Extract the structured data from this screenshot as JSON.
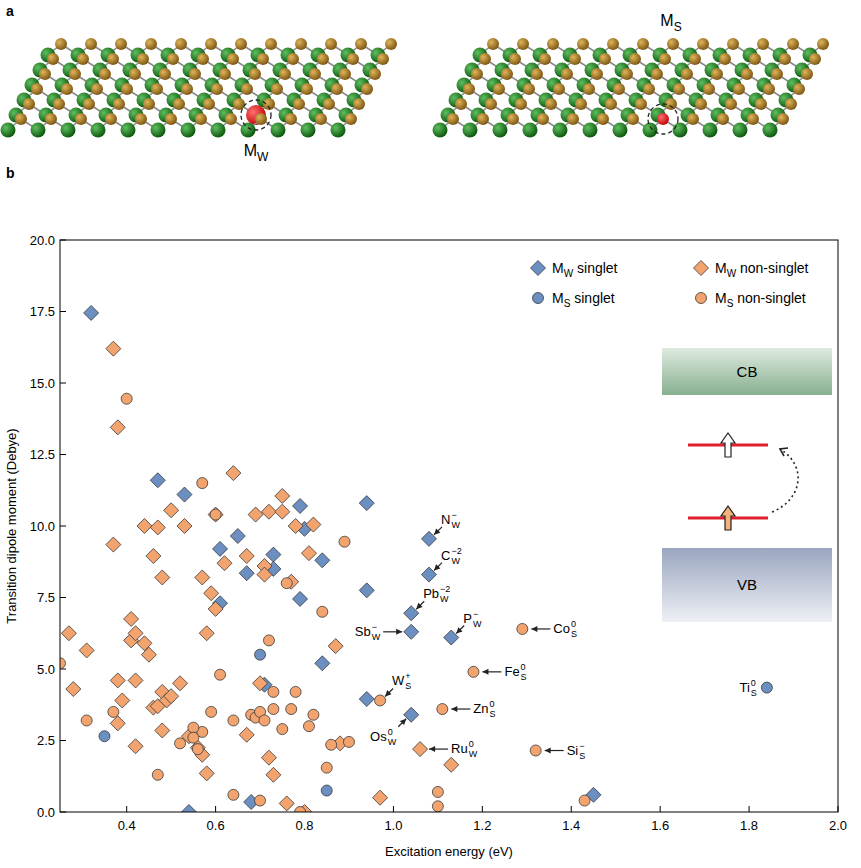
{
  "panel_a": {
    "label": "a",
    "structures": [
      {
        "label": "MW"
      },
      {
        "label": "MS"
      }
    ]
  },
  "chart_data": {
    "type": "scatter",
    "panel_label": "b",
    "x_label": "Excitation energy (eV)",
    "y_label": "Transition dipole moment (Debye)",
    "xlim": [
      0.25,
      2.0
    ],
    "ylim": [
      0,
      20
    ],
    "xticks": [
      0.4,
      0.6,
      0.8,
      {
        "value": 1,
        "label": "1.0"
      },
      1.2,
      1.4,
      1.6,
      1.8,
      {
        "value": 2,
        "label": "2.0"
      }
    ],
    "yticks": [
      {
        "value": 0,
        "label": "0.0"
      },
      2.5,
      {
        "value": 5,
        "label": "5.0"
      },
      7.5,
      {
        "value": 10,
        "label": "10.0"
      },
      12.5,
      {
        "value": 15,
        "label": "15.0"
      },
      17.5,
      {
        "value": 20,
        "label": "20.0"
      }
    ],
    "grid": false,
    "legend": "upper right",
    "series": [
      {
        "name": "MW singlet",
        "color": "#6a8fc0",
        "marker": "diamond",
        "x": [
          0.32,
          0.47,
          0.53,
          0.61,
          0.61,
          0.65,
          0.67,
          0.73,
          0.73,
          0.71,
          0.79,
          0.79,
          0.8,
          0.84,
          0.84,
          0.94,
          0.94,
          0.94,
          1.08,
          1.08,
          1.04,
          1.04,
          1.13,
          1.04,
          0.54,
          0.68,
          1.45
        ],
        "values": [
          17.45,
          11.6,
          11.1,
          9.2,
          7.3,
          9.65,
          8.35,
          9.0,
          8.5,
          4.45,
          10.7,
          7.45,
          9.9,
          8.8,
          5.2,
          10.8,
          7.75,
          3.95,
          9.55,
          8.3,
          6.95,
          6.3,
          6.1,
          3.4,
          0.0,
          0.35,
          0.6
        ]
      },
      {
        "name": "MW non-singlet",
        "color": "#f2a36e",
        "marker": "diamond",
        "x": [
          0.37,
          0.38,
          0.37,
          0.27,
          0.28,
          0.31,
          0.38,
          0.38,
          0.39,
          0.41,
          0.41,
          0.42,
          0.42,
          0.42,
          0.44,
          0.44,
          0.45,
          0.46,
          0.46,
          0.47,
          0.47,
          0.48,
          0.48,
          0.48,
          0.49,
          0.5,
          0.5,
          0.52,
          0.53,
          0.54,
          0.56,
          0.57,
          0.57,
          0.58,
          0.58,
          0.59,
          0.6,
          0.6,
          0.62,
          0.64,
          0.67,
          0.67,
          0.69,
          0.7,
          0.71,
          0.71,
          0.72,
          0.72,
          0.73,
          0.75,
          0.75,
          0.76,
          0.77,
          0.78,
          0.8,
          0.81,
          0.82,
          0.87,
          0.88,
          0.97,
          1.13,
          1.06
        ],
        "values": [
          16.2,
          13.45,
          9.35,
          6.25,
          4.3,
          5.65,
          4.6,
          3.1,
          3.9,
          6.75,
          6.0,
          2.3,
          4.6,
          6.25,
          10.0,
          5.9,
          5.5,
          3.65,
          8.95,
          9.95,
          3.7,
          8.2,
          2.85,
          4.2,
          3.9,
          10.55,
          4.05,
          4.5,
          10.0,
          2.65,
          2.25,
          2.0,
          8.2,
          1.35,
          6.25,
          7.65,
          7.1,
          10.4,
          8.7,
          11.85,
          2.7,
          8.95,
          10.4,
          4.5,
          8.6,
          8.3,
          1.9,
          10.5,
          1.3,
          11.05,
          10.5,
          0.3,
          8.05,
          10.0,
          0.0,
          9.05,
          10.05,
          5.8,
          2.4,
          0.5,
          1.65,
          2.2
        ]
      },
      {
        "name": "MS singlet",
        "color": "#6a8fc0",
        "marker": "circle",
        "x": [
          0.35,
          0.7,
          0.85,
          1.84
        ],
        "values": [
          2.65,
          5.5,
          0.75,
          4.35
        ]
      },
      {
        "name": "MS non-singlet",
        "color": "#f2a36e",
        "marker": "circle",
        "x": [
          0.25,
          0.31,
          0.4,
          0.37,
          0.47,
          0.57,
          0.57,
          0.59,
          0.6,
          0.61,
          0.64,
          0.64,
          0.68,
          0.69,
          0.7,
          0.71,
          0.72,
          0.73,
          0.73,
          0.75,
          0.76,
          0.77,
          0.78,
          0.79,
          0.81,
          0.82,
          0.84,
          0.85,
          0.86,
          0.89,
          0.9,
          0.97,
          1.1,
          1.1,
          1.11,
          1.18,
          1.29,
          1.32,
          1.43,
          0.7,
          0.52,
          0.55,
          0.56,
          0.55
        ],
        "values": [
          5.2,
          3.2,
          14.45,
          3.5,
          1.3,
          11.5,
          2.8,
          3.5,
          10.4,
          4.8,
          0.6,
          3.2,
          3.4,
          3.3,
          3.5,
          3.2,
          6.0,
          3.6,
          4.2,
          2.9,
          8.0,
          3.6,
          4.2,
          0.0,
          3.0,
          3.4,
          7.0,
          1.55,
          2.35,
          9.45,
          2.45,
          3.9,
          0.2,
          0.7,
          3.6,
          4.9,
          6.4,
          2.15,
          0.4,
          0.4,
          2.4,
          2.95,
          2.2,
          2.6
        ]
      }
    ],
    "annotations": [
      {
        "text": "N",
        "sub": "W",
        "sup": "−",
        "x": 1.08,
        "y": 9.55
      },
      {
        "text": "C",
        "sub": "W",
        "sup": "−2",
        "x": 1.08,
        "y": 8.3
      },
      {
        "text": "Pb",
        "sub": "W",
        "sup": "−2",
        "x": 1.04,
        "y": 6.95
      },
      {
        "text": "Sb",
        "sub": "W",
        "sup": "−",
        "x": 1.04,
        "y": 6.3
      },
      {
        "text": "P",
        "sub": "W",
        "sup": "−",
        "x": 1.13,
        "y": 6.1
      },
      {
        "text": "W",
        "sub": "S",
        "sup": "+",
        "x": 0.97,
        "y": 3.9
      },
      {
        "text": "Os",
        "sub": "W",
        "sup": "0",
        "x": 1.04,
        "y": 3.4
      },
      {
        "text": "Ru",
        "sub": "W",
        "sup": "0",
        "x": 1.06,
        "y": 2.2
      },
      {
        "text": "Zn",
        "sub": "S",
        "sup": "0",
        "x": 1.11,
        "y": 3.6
      },
      {
        "text": "Fe",
        "sub": "S",
        "sup": "0",
        "x": 1.18,
        "y": 4.9
      },
      {
        "text": "Co",
        "sub": "S",
        "sup": "0",
        "x": 1.29,
        "y": 6.4
      },
      {
        "text": "Si",
        "sub": "S",
        "sup": "−",
        "x": 1.32,
        "y": 2.15
      },
      {
        "text": "Ti",
        "sub": "S",
        "sup": "0",
        "x": 1.84,
        "y": 4.35
      }
    ],
    "inset_labels": {
      "conduction_band": "CB",
      "valence_band": "VB"
    }
  }
}
